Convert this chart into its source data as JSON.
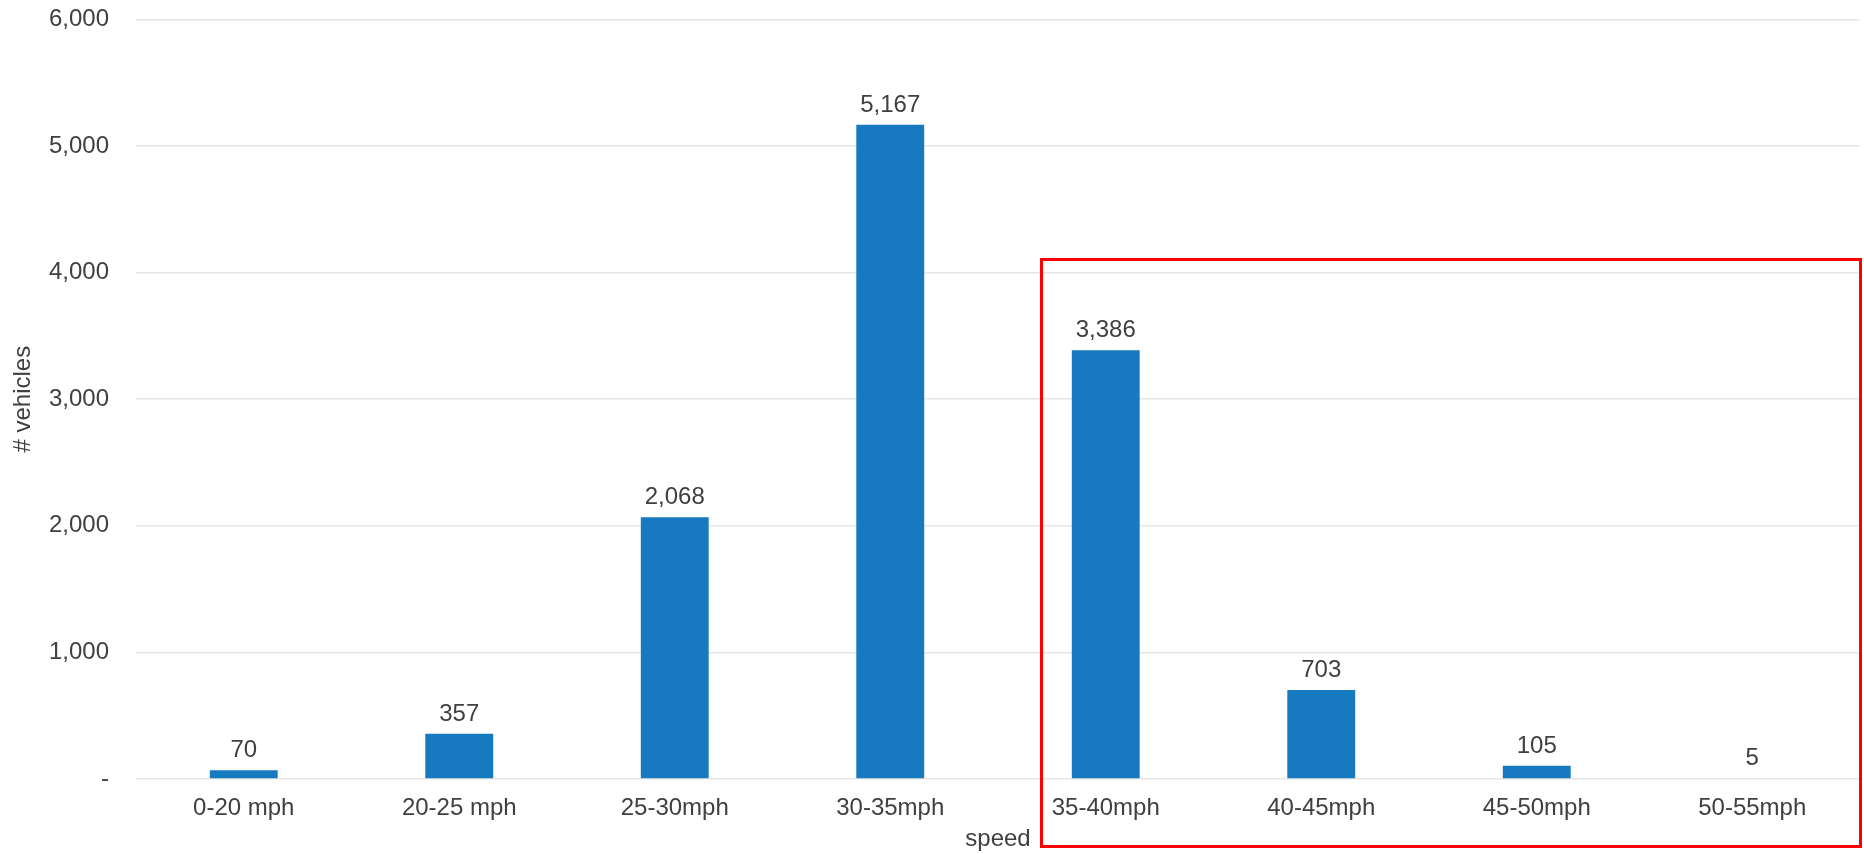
{
  "chart_data": {
    "type": "bar",
    "xlabel": "speed",
    "ylabel": "# vehicles",
    "categories": [
      "0-20 mph",
      "20-25 mph",
      "25-30mph",
      "30-35mph",
      "35-40mph",
      "40-45mph",
      "45-50mph",
      "50-55mph"
    ],
    "values": [
      70,
      357,
      2068,
      5167,
      3386,
      703,
      105,
      5
    ],
    "value_labels": [
      "70",
      "357",
      "2,068",
      "5,167",
      "3,386",
      "703",
      "105",
      "5"
    ],
    "color": "#1779bf",
    "ylim": [
      0,
      6000
    ],
    "yticks": [
      {
        "value": 0,
        "label": "-"
      },
      {
        "value": 1000,
        "label": "1,000"
      },
      {
        "value": 2000,
        "label": "2,000"
      },
      {
        "value": 3000,
        "label": "3,000"
      },
      {
        "value": 4000,
        "label": "4,000"
      },
      {
        "value": 5000,
        "label": "5,000"
      },
      {
        "value": 6000,
        "label": "6,000"
      }
    ],
    "grid": "y"
  }
}
